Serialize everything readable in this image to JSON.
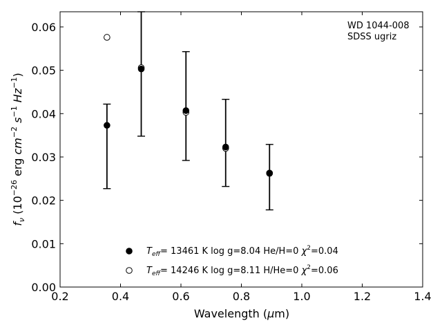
{
  "chart_data": {
    "type": "scatter",
    "xlabel": "Wavelength (μm)",
    "xlabel_parts": [
      "Wavelength (",
      "μ",
      "m)"
    ],
    "ylabel_parts": [
      "f",
      "ν",
      " (10",
      "−26",
      " erg ",
      "cm",
      "−2",
      " ",
      "s",
      "−1",
      " ",
      "Hz",
      "−1",
      ")"
    ],
    "xlim": [
      0.2,
      1.4
    ],
    "ylim": [
      0.0,
      0.0635
    ],
    "xticks": [
      0.2,
      0.4,
      0.6,
      0.8,
      1.0,
      1.2,
      1.4
    ],
    "xtick_labels": [
      "0.2",
      "0.4",
      "0.6",
      "0.8",
      "1.0",
      "1.2",
      "1.4"
    ],
    "yticks": [
      0.0,
      0.01,
      0.02,
      0.03,
      0.04,
      0.05,
      0.06
    ],
    "ytick_labels": [
      "0.00",
      "0.01",
      "0.02",
      "0.03",
      "0.04",
      "0.05",
      "0.06"
    ],
    "grid": false,
    "legend_position": "lower-center",
    "annotation": [
      "WD 1044-008",
      "SDSS ugriz"
    ],
    "observed": {
      "x": [
        0.3551,
        0.4686,
        0.6166,
        0.748,
        0.8932
      ],
      "y": [
        0.0373,
        0.0505,
        0.0407,
        0.0322,
        0.0264
      ],
      "err_low": [
        0.0227,
        0.0348,
        0.0292,
        0.0232,
        0.0178
      ],
      "err_high": [
        0.0422,
        0.0635,
        0.0543,
        0.0433,
        0.0329
      ]
    },
    "series": [
      {
        "name": "Teff= 13461 K  log g=8.04  He/H=0  χ2=0.04",
        "legend_parts": [
          "T",
          "eff",
          "= 13461 K  log g=8.04  He/H=0  ",
          "χ",
          "2",
          "=0.04"
        ],
        "marker": "filled-circle",
        "x": [
          0.3551,
          0.4686,
          0.6166,
          0.748,
          0.8932
        ],
        "y": [
          0.0373,
          0.0503,
          0.0407,
          0.0323,
          0.0263
        ]
      },
      {
        "name": "Teff= 14246 K  log g=8.11  H/He=0  χ2=0.06",
        "legend_parts": [
          "T",
          "eff",
          "= 14246 K  log g=8.11  H/He=0  ",
          "χ",
          "2",
          "=0.06"
        ],
        "marker": "open-circle",
        "x": [
          0.3551,
          0.4686,
          0.6166,
          0.748,
          0.8932
        ],
        "y": [
          0.0576,
          0.0506,
          0.0403,
          0.032,
          0.0262
        ]
      }
    ]
  }
}
